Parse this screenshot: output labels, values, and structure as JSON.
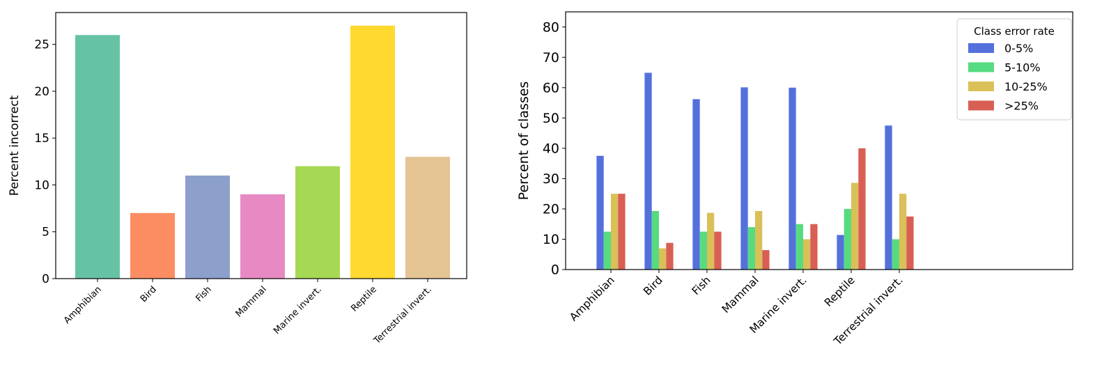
{
  "chart_data": [
    {
      "type": "bar",
      "categories": [
        "Amphibian",
        "Bird",
        "Fish",
        "Mammal",
        "Marine invert.",
        "Reptile",
        "Terrestrial invert."
      ],
      "values": [
        26,
        7,
        11,
        9,
        12,
        27,
        13
      ],
      "colors": [
        "#66c2a5",
        "#fc8d62",
        "#8da0cb",
        "#e78ac3",
        "#a6d854",
        "#ffd92f",
        "#e5c494"
      ],
      "xlabel": "",
      "ylabel": "Percent incorrect",
      "ylim": [
        0,
        28.4
      ],
      "yticks": [
        0,
        5,
        10,
        15,
        20,
        25
      ],
      "grid": false
    },
    {
      "type": "bar",
      "categories": [
        "Amphibian",
        "Bird",
        "Fish",
        "Mammal",
        "Marine invert.",
        "Reptile",
        "Terrestrial invert."
      ],
      "series": [
        {
          "name": "0-5%",
          "color": "#5470dc",
          "values": [
            37.5,
            64.9,
            56.2,
            60.1,
            60.0,
            11.4,
            47.5
          ]
        },
        {
          "name": "5-10%",
          "color": "#57db80",
          "values": [
            12.5,
            19.3,
            12.5,
            14.0,
            15.0,
            20.0,
            10.0
          ]
        },
        {
          "name": "10-25%",
          "color": "#d9c058",
          "values": [
            25.0,
            7.0,
            18.7,
            19.3,
            10.0,
            28.6,
            25.0
          ]
        },
        {
          "name": ">25%",
          "color": "#d95f55",
          "values": [
            25.0,
            8.8,
            12.5,
            6.4,
            15.0,
            40.0,
            17.5
          ]
        }
      ],
      "legend_title": "Class error rate",
      "legend_position": "top-right",
      "xlabel": "",
      "ylabel": "Percent of classes",
      "ylim": [
        0,
        85
      ],
      "yticks": [
        0,
        10,
        20,
        30,
        40,
        50,
        60,
        70,
        80
      ],
      "grid": false
    }
  ]
}
